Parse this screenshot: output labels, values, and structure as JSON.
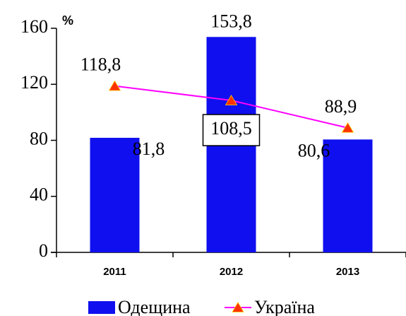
{
  "chart_data": {
    "type": "bar",
    "unit_label": "%",
    "categories": [
      "2011",
      "2012",
      "2013"
    ],
    "series": [
      {
        "name": "Одещина",
        "type": "bar",
        "color": "#0f0fef",
        "values": [
          81.8,
          153.8,
          80.6
        ],
        "value_labels": [
          "81,8",
          "153,8",
          "80,6"
        ]
      },
      {
        "name": "Україна",
        "type": "line",
        "color": "#ff00ff",
        "marker_color": "#ff3300",
        "values": [
          118.8,
          108.5,
          88.9
        ],
        "value_labels": [
          "118,8",
          "108,5",
          "88,9"
        ]
      }
    ],
    "ylim": [
      0,
      160
    ],
    "yticks": [
      0,
      40,
      80,
      120,
      160
    ],
    "grid": false
  }
}
